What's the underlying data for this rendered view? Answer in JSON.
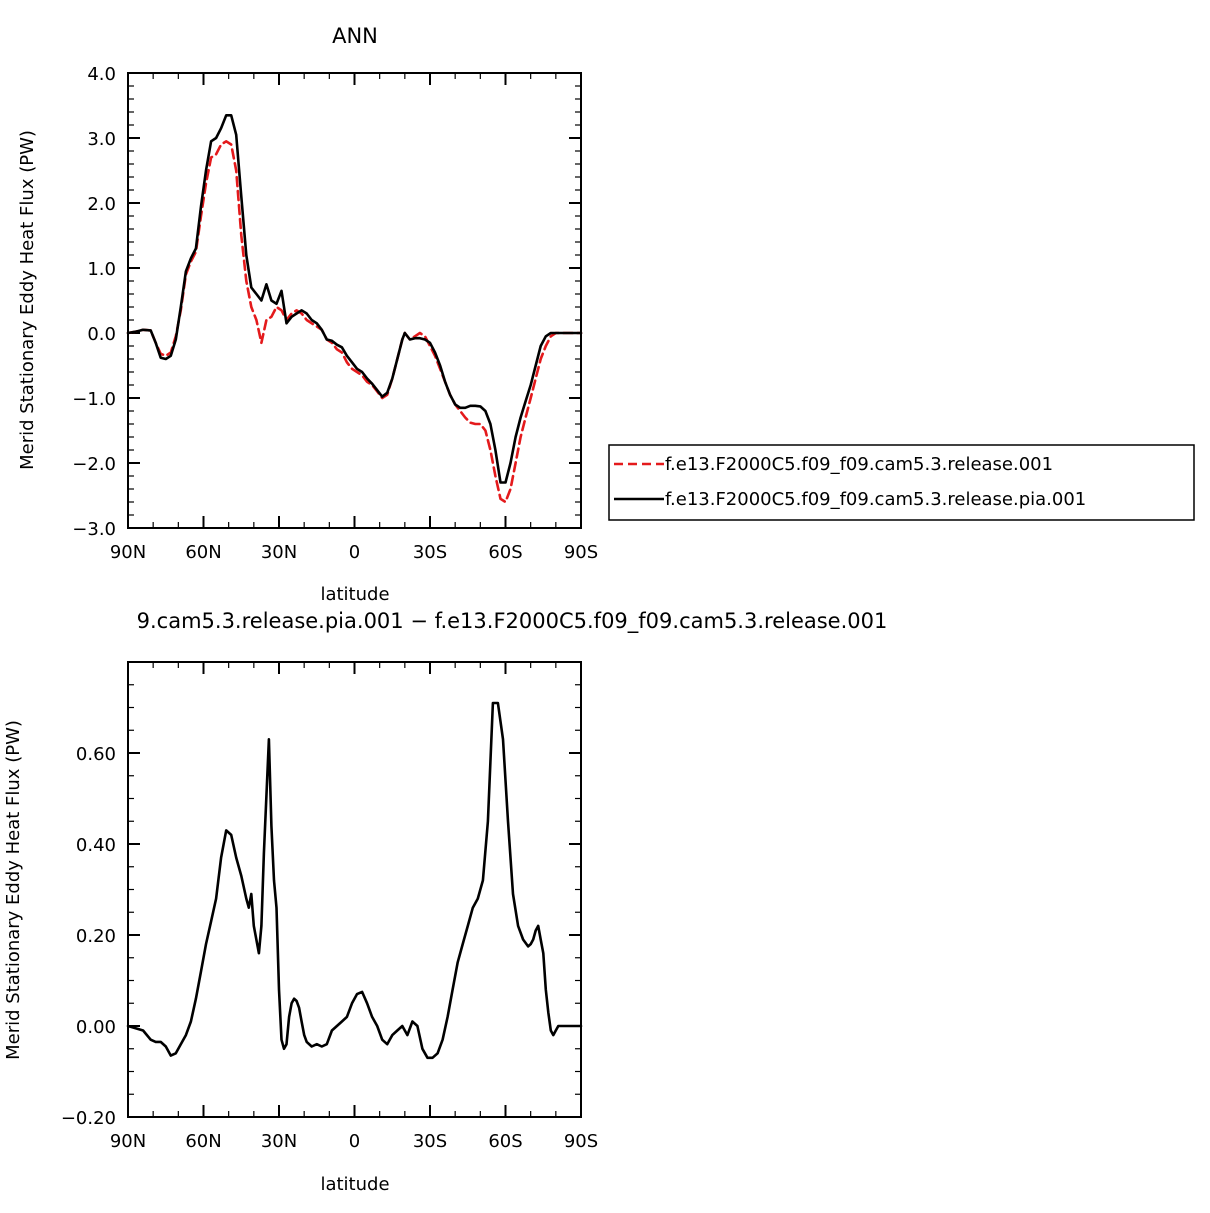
{
  "chart_data": [
    {
      "type": "line",
      "title": "ANN",
      "xlabel": "latitude",
      "ylabel": "Merid Stationary Eddy Heat Flux (PW)",
      "xlim": [
        90,
        -90
      ],
      "ylim": [
        -3.0,
        4.0
      ],
      "x_ticks": [
        90,
        60,
        30,
        0,
        -30,
        -60,
        -90
      ],
      "x_tick_labels": [
        "90N",
        "60N",
        "30N",
        "0",
        "30S",
        "60S",
        "90S"
      ],
      "y_ticks": [
        -3.0,
        -2.0,
        -1.0,
        0.0,
        1.0,
        2.0,
        3.0,
        4.0
      ],
      "y_tick_labels": [
        "−3.0",
        "−2.0",
        "−1.0",
        "0.0",
        "1.0",
        "2.0",
        "3.0",
        "4.0"
      ],
      "legend_position": "right",
      "series": [
        {
          "name": "f.e13.F2000C5.f09_f09.cam5.3.release.001",
          "color": "#e41a1c",
          "dash": "dashed",
          "x": [
            90,
            87,
            84,
            81,
            79,
            77,
            75,
            73,
            71,
            69,
            67,
            65,
            63,
            61,
            59,
            57,
            55,
            53,
            51,
            49,
            47,
            45,
            43,
            41,
            39,
            37,
            35,
            33,
            31,
            29,
            27,
            25,
            23,
            21,
            19,
            17,
            15,
            13,
            11,
            9,
            7,
            5,
            3,
            1,
            -1,
            -3,
            -5,
            -7,
            -9,
            -11,
            -13,
            -15,
            -17,
            -19,
            -20,
            -22,
            -24,
            -26,
            -28,
            -30,
            -32,
            -34,
            -36,
            -38,
            -40,
            -42,
            -44,
            -46,
            -48,
            -50,
            -52,
            -54,
            -56,
            -58,
            -60,
            -62,
            -64,
            -66,
            -68,
            -70,
            -72,
            -74,
            -76,
            -78,
            -80,
            -82,
            -84,
            -86,
            -88,
            -90
          ],
          "y": [
            0.0,
            0.02,
            0.05,
            0.04,
            -0.15,
            -0.32,
            -0.35,
            -0.3,
            -0.05,
            0.35,
            0.9,
            1.1,
            1.25,
            1.8,
            2.3,
            2.7,
            2.75,
            2.9,
            2.95,
            2.9,
            2.5,
            1.5,
            0.8,
            0.4,
            0.2,
            -0.15,
            0.2,
            0.25,
            0.4,
            0.35,
            0.2,
            0.3,
            0.35,
            0.3,
            0.2,
            0.15,
            0.1,
            0.05,
            -0.1,
            -0.15,
            -0.25,
            -0.3,
            -0.45,
            -0.55,
            -0.6,
            -0.65,
            -0.75,
            -0.8,
            -0.9,
            -1.0,
            -0.95,
            -0.7,
            -0.4,
            -0.1,
            0.0,
            -0.1,
            -0.05,
            0.0,
            -0.05,
            -0.2,
            -0.35,
            -0.55,
            -0.75,
            -0.95,
            -1.1,
            -1.2,
            -1.3,
            -1.38,
            -1.4,
            -1.4,
            -1.5,
            -1.8,
            -2.2,
            -2.55,
            -2.6,
            -2.4,
            -2.0,
            -1.6,
            -1.3,
            -1.0,
            -0.7,
            -0.4,
            -0.2,
            -0.05,
            0.0,
            0.0,
            0.0,
            0.0,
            0.0,
            0.0
          ]
        },
        {
          "name": "f.e13.F2000C5.f09_f09.cam5.3.release.pia.001",
          "color": "#000000",
          "dash": "solid",
          "x": [
            90,
            87,
            84,
            81,
            79,
            77,
            75,
            73,
            71,
            69,
            67,
            65,
            63,
            61,
            59,
            57,
            55,
            53,
            51,
            49,
            47,
            45,
            43,
            41,
            39,
            37,
            35,
            33,
            31,
            29,
            27,
            25,
            23,
            21,
            19,
            17,
            15,
            13,
            11,
            9,
            7,
            5,
            3,
            1,
            -1,
            -3,
            -5,
            -7,
            -9,
            -11,
            -13,
            -15,
            -17,
            -19,
            -20,
            -22,
            -24,
            -26,
            -28,
            -30,
            -32,
            -34,
            -36,
            -38,
            -40,
            -42,
            -44,
            -46,
            -48,
            -50,
            -52,
            -54,
            -56,
            -58,
            -60,
            -62,
            -64,
            -66,
            -68,
            -70,
            -72,
            -74,
            -76,
            -78,
            -80,
            -82,
            -84,
            -86,
            -88,
            -90
          ],
          "y": [
            0.0,
            0.02,
            0.05,
            0.04,
            -0.15,
            -0.38,
            -0.4,
            -0.35,
            -0.1,
            0.4,
            0.95,
            1.15,
            1.3,
            1.95,
            2.5,
            2.95,
            3.0,
            3.15,
            3.35,
            3.35,
            3.05,
            2.1,
            1.2,
            0.7,
            0.6,
            0.5,
            0.75,
            0.5,
            0.45,
            0.65,
            0.15,
            0.25,
            0.3,
            0.35,
            0.3,
            0.2,
            0.15,
            0.05,
            -0.1,
            -0.12,
            -0.18,
            -0.22,
            -0.35,
            -0.45,
            -0.55,
            -0.6,
            -0.7,
            -0.78,
            -0.88,
            -0.98,
            -0.92,
            -0.7,
            -0.4,
            -0.1,
            0.0,
            -0.1,
            -0.08,
            -0.08,
            -0.1,
            -0.15,
            -0.3,
            -0.5,
            -0.75,
            -0.95,
            -1.1,
            -1.15,
            -1.15,
            -1.12,
            -1.12,
            -1.13,
            -1.2,
            -1.4,
            -1.8,
            -2.3,
            -2.3,
            -2.0,
            -1.6,
            -1.3,
            -1.05,
            -0.8,
            -0.5,
            -0.2,
            -0.05,
            0.0,
            0.0,
            0.0,
            0.0,
            0.0,
            0.0,
            0.0
          ]
        }
      ]
    },
    {
      "type": "line",
      "title": "9.cam5.3.release.pia.001 − f.e13.F2000C5.f09_f09.cam5.3.release.001",
      "xlabel": "latitude",
      "ylabel": "Merid Stationary Eddy Heat Flux (PW)",
      "xlim": [
        90,
        -90
      ],
      "ylim": [
        -0.2,
        0.8
      ],
      "x_ticks": [
        90,
        60,
        30,
        0,
        -30,
        -60,
        -90
      ],
      "x_tick_labels": [
        "90N",
        "60N",
        "30N",
        "0",
        "30S",
        "60S",
        "90S"
      ],
      "y_ticks": [
        -0.2,
        0.0,
        0.2,
        0.4,
        0.6
      ],
      "y_tick_labels": [
        "−0.20",
        "0.00",
        "0.20",
        "0.40",
        "0.60"
      ],
      "series": [
        {
          "color": "#000000",
          "dash": "solid",
          "x": [
            90,
            87,
            84,
            81,
            79,
            77,
            75,
            73,
            71,
            69,
            67,
            65,
            63,
            61,
            59,
            57,
            55,
            53,
            51,
            49,
            47,
            45,
            43,
            42,
            41,
            40,
            38,
            37,
            36,
            34,
            33,
            32,
            31,
            30,
            29,
            28,
            27,
            26,
            25,
            24,
            23,
            22,
            21,
            20,
            19,
            17,
            15,
            13,
            11,
            9,
            7,
            5,
            3,
            1,
            -1,
            -3,
            -5,
            -7,
            -9,
            -11,
            -13,
            -15,
            -17,
            -19,
            -21,
            -23,
            -25,
            -27,
            -29,
            -31,
            -33,
            -35,
            -37,
            -39,
            -41,
            -43,
            -45,
            -47,
            -49,
            -51,
            -53,
            -55,
            -57,
            -59,
            -61,
            -63,
            -65,
            -67,
            -69,
            -70,
            -71,
            -72,
            -73,
            -74,
            -75,
            -76,
            -77,
            -78,
            -79,
            -80,
            -81,
            -82,
            -83,
            -84,
            -85,
            -86,
            -88,
            -90
          ],
          "y": [
            0.0,
            -0.005,
            -0.01,
            -0.03,
            -0.035,
            -0.035,
            -0.045,
            -0.065,
            -0.06,
            -0.04,
            -0.02,
            0.01,
            0.06,
            0.12,
            0.18,
            0.23,
            0.28,
            0.37,
            0.43,
            0.42,
            0.37,
            0.33,
            0.28,
            0.26,
            0.29,
            0.22,
            0.16,
            0.22,
            0.38,
            0.63,
            0.44,
            0.32,
            0.26,
            0.08,
            -0.03,
            -0.05,
            -0.04,
            0.02,
            0.05,
            0.06,
            0.055,
            0.04,
            0.01,
            -0.02,
            -0.035,
            -0.045,
            -0.04,
            -0.045,
            -0.04,
            -0.01,
            0.0,
            0.01,
            0.02,
            0.05,
            0.07,
            0.075,
            0.05,
            0.02,
            0.0,
            -0.03,
            -0.04,
            -0.02,
            -0.01,
            0.0,
            -0.02,
            0.01,
            0.0,
            -0.05,
            -0.07,
            -0.07,
            -0.06,
            -0.03,
            0.02,
            0.08,
            0.14,
            0.18,
            0.22,
            0.26,
            0.28,
            0.32,
            0.45,
            0.71,
            0.71,
            0.63,
            0.45,
            0.29,
            0.22,
            0.19,
            0.175,
            0.18,
            0.19,
            0.21,
            0.22,
            0.19,
            0.16,
            0.08,
            0.03,
            -0.01,
            -0.02,
            -0.01,
            0.0,
            0.0,
            0.0,
            0.0,
            0.0,
            0.0,
            0.0,
            0.0
          ]
        }
      ]
    }
  ]
}
